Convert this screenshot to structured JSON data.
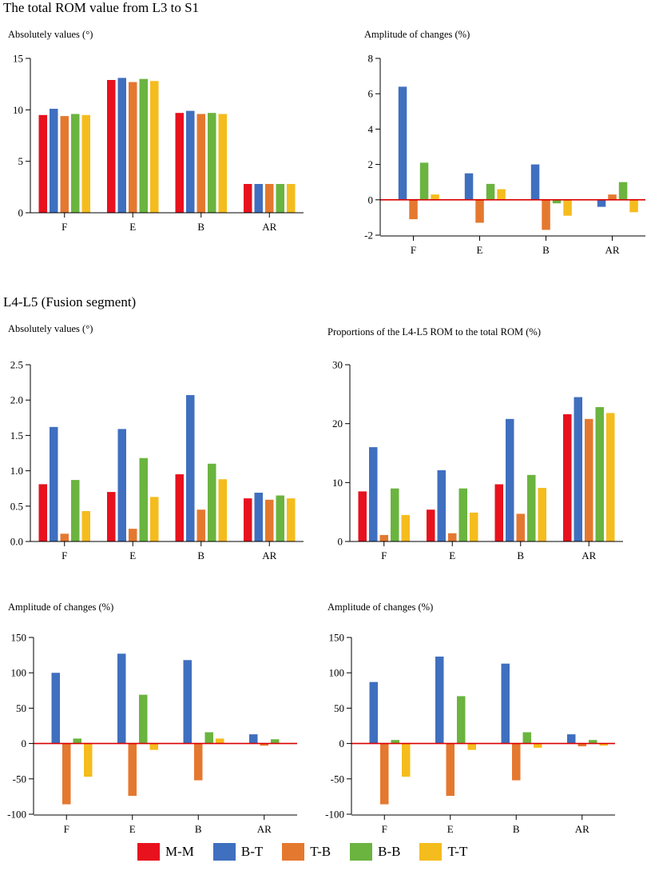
{
  "colors": {
    "M-M": "#e8111e",
    "B-T": "#3f6fbf",
    "T-B": "#e5782f",
    "B-B": "#6ab43f",
    "T-T": "#f5bc1d",
    "zero_line": "#d90000",
    "axis": "#000000"
  },
  "titles": {
    "top_section": "The total ROM value from L3 to S1",
    "fusion_section": "L4-L5  (Fusion segment)"
  },
  "legend": [
    {
      "name": "M-M"
    },
    {
      "name": "B-T"
    },
    {
      "name": "T-B"
    },
    {
      "name": "B-B"
    },
    {
      "name": "T-T"
    }
  ],
  "chart_data": [
    {
      "id": "c1",
      "type": "bar",
      "title": "Absolutely values (°)",
      "categories": [
        "F",
        "E",
        "B",
        "AR"
      ],
      "ylim": [
        0,
        15
      ],
      "yticks": [
        0,
        5,
        10,
        15
      ],
      "tick_labels": [
        "0",
        "5",
        "10",
        "15"
      ],
      "zero_line": false,
      "series": [
        {
          "name": "M-M",
          "values": [
            9.5,
            12.9,
            9.7,
            2.8
          ]
        },
        {
          "name": "B-T",
          "values": [
            10.1,
            13.1,
            9.9,
            2.8
          ]
        },
        {
          "name": "T-B",
          "values": [
            9.4,
            12.7,
            9.6,
            2.8
          ]
        },
        {
          "name": "B-B",
          "values": [
            9.6,
            13.0,
            9.7,
            2.8
          ]
        },
        {
          "name": "T-T",
          "values": [
            9.5,
            12.8,
            9.6,
            2.8
          ]
        }
      ]
    },
    {
      "id": "c2",
      "type": "bar",
      "title": "Amplitude of changes (%)",
      "categories": [
        "F",
        "E",
        "B",
        "AR"
      ],
      "ylim": [
        -2,
        8
      ],
      "yticks": [
        -2,
        0,
        2,
        4,
        6,
        8
      ],
      "tick_labels": [
        "-2",
        "0",
        "2",
        "4",
        "6",
        "8"
      ],
      "zero_line": true,
      "series": [
        {
          "name": "B-T",
          "values": [
            6.4,
            1.5,
            2.0,
            -0.4
          ]
        },
        {
          "name": "T-B",
          "values": [
            -1.1,
            -1.3,
            -1.7,
            0.3
          ]
        },
        {
          "name": "B-B",
          "values": [
            2.1,
            0.9,
            -0.2,
            1.0
          ]
        },
        {
          "name": "T-T",
          "values": [
            0.3,
            0.6,
            -0.9,
            -0.7
          ]
        }
      ]
    },
    {
      "id": "c3",
      "type": "bar",
      "title": "Absolutely values (°)",
      "categories": [
        "F",
        "E",
        "B",
        "AR"
      ],
      "ylim": [
        0,
        2.5
      ],
      "yticks": [
        0,
        0.5,
        1,
        1.5,
        2,
        2.5
      ],
      "tick_labels": [
        "0.0",
        "0.5",
        "1.0",
        "1.5",
        "2.0",
        "2.5"
      ],
      "zero_line": false,
      "series": [
        {
          "name": "M-M",
          "values": [
            0.81,
            0.7,
            0.95,
            0.61
          ]
        },
        {
          "name": "B-T",
          "values": [
            1.62,
            1.59,
            2.07,
            0.69
          ]
        },
        {
          "name": "T-B",
          "values": [
            0.11,
            0.18,
            0.45,
            0.59
          ]
        },
        {
          "name": "B-B",
          "values": [
            0.87,
            1.18,
            1.1,
            0.65
          ]
        },
        {
          "name": "T-T",
          "values": [
            0.43,
            0.63,
            0.88,
            0.61
          ]
        }
      ]
    },
    {
      "id": "c4",
      "type": "bar",
      "title": "Proportions of the L4-L5 ROM to the total ROM (%)",
      "categories": [
        "F",
        "E",
        "B",
        "AR"
      ],
      "ylim": [
        0,
        30
      ],
      "yticks": [
        0,
        10,
        20,
        30
      ],
      "tick_labels": [
        "0",
        "10",
        "20",
        "30"
      ],
      "zero_line": false,
      "series": [
        {
          "name": "M-M",
          "values": [
            8.5,
            5.4,
            9.7,
            21.6
          ]
        },
        {
          "name": "B-T",
          "values": [
            16.0,
            12.1,
            20.8,
            24.5
          ]
        },
        {
          "name": "T-B",
          "values": [
            1.1,
            1.4,
            4.7,
            20.8
          ]
        },
        {
          "name": "B-B",
          "values": [
            9.0,
            9.0,
            11.3,
            22.8
          ]
        },
        {
          "name": "T-T",
          "values": [
            4.5,
            4.9,
            9.1,
            21.8
          ]
        }
      ]
    },
    {
      "id": "c5",
      "type": "bar",
      "title": "Amplitude of changes (%)",
      "categories": [
        "F",
        "E",
        "B",
        "AR"
      ],
      "ylim": [
        -100,
        150
      ],
      "yticks": [
        -100,
        -50,
        0,
        50,
        100,
        150
      ],
      "tick_labels": [
        "-100",
        "-50",
        "0",
        "50",
        "100",
        "150"
      ],
      "zero_line": true,
      "series": [
        {
          "name": "B-T",
          "values": [
            100,
            127,
            118,
            13
          ]
        },
        {
          "name": "T-B",
          "values": [
            -86,
            -74,
            -52,
            -3
          ]
        },
        {
          "name": "B-B",
          "values": [
            7,
            69,
            16,
            6
          ]
        },
        {
          "name": "T-T",
          "values": [
            -47,
            -9,
            7,
            0
          ]
        }
      ]
    },
    {
      "id": "c6",
      "type": "bar",
      "title": "Amplitude of changes (%)",
      "categories": [
        "F",
        "E",
        "B",
        "AR"
      ],
      "ylim": [
        -100,
        150
      ],
      "yticks": [
        -100,
        -50,
        0,
        50,
        100,
        150
      ],
      "tick_labels": [
        "-100",
        "-50",
        "0",
        "50",
        "100",
        "150"
      ],
      "zero_line": true,
      "series": [
        {
          "name": "B-T",
          "values": [
            87,
            123,
            113,
            13
          ]
        },
        {
          "name": "T-B",
          "values": [
            -86,
            -74,
            -52,
            -4
          ]
        },
        {
          "name": "B-B",
          "values": [
            5,
            67,
            16,
            5
          ]
        },
        {
          "name": "T-T",
          "values": [
            -47,
            -9,
            -6,
            -3
          ]
        }
      ]
    }
  ]
}
